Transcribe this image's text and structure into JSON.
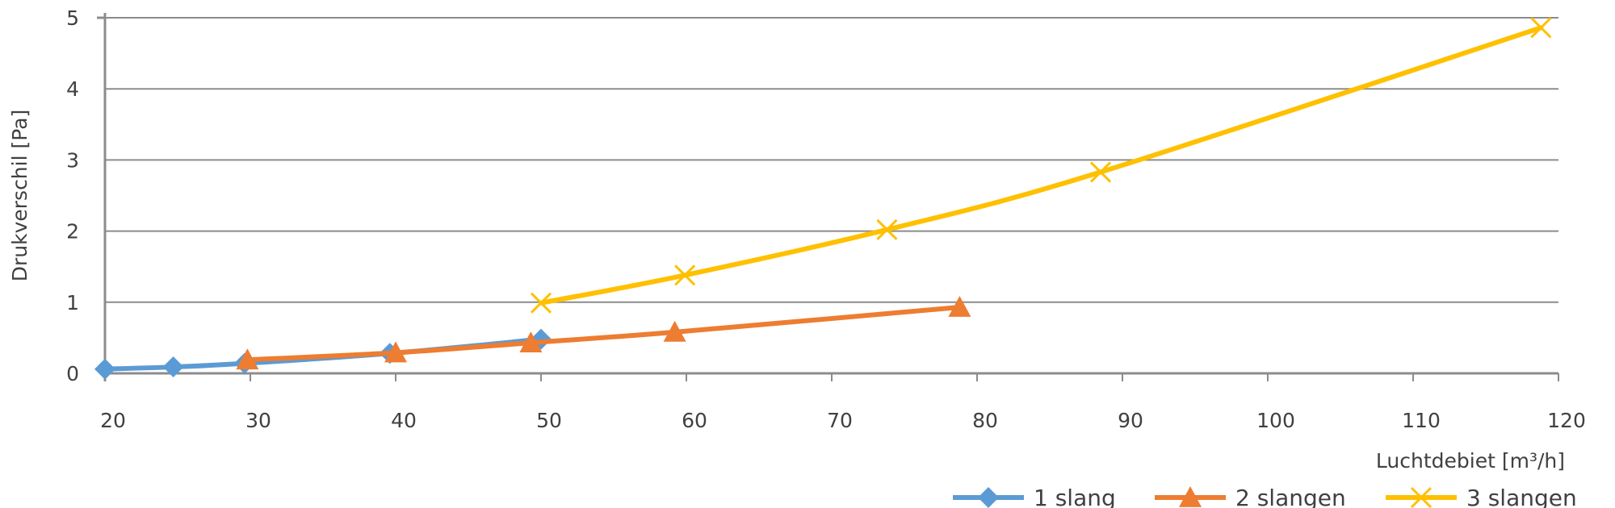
{
  "chart_data": {
    "type": "line",
    "xlabel": "Luchtdebiet [m³/h]",
    "ylabel": "Drukverschil [Pa]",
    "xlim": [
      20,
      120
    ],
    "ylim": [
      0,
      5
    ],
    "x_ticks": [
      "20",
      "30",
      "40",
      "50",
      "60",
      "70",
      "80",
      "90",
      "100",
      "110",
      "120"
    ],
    "y_ticks": [
      "0",
      "1",
      "2",
      "3",
      "4",
      "5"
    ],
    "grid": "horizontal",
    "legend_position": "bottom-right",
    "series": [
      {
        "name": "1 slang",
        "marker": "diamond",
        "color": "#5B9BD5",
        "points": [
          [
            20,
            0.06
          ],
          [
            24.7,
            0.09
          ],
          [
            29.6,
            0.14
          ],
          [
            39.6,
            0.28
          ],
          [
            50,
            0.48
          ]
        ]
      },
      {
        "name": "2 slangen",
        "marker": "triangle",
        "color": "#ED7D31",
        "points": [
          [
            29.8,
            0.19
          ],
          [
            40,
            0.29
          ],
          [
            49.3,
            0.43
          ],
          [
            59.2,
            0.58
          ],
          [
            78.8,
            0.93
          ]
        ]
      },
      {
        "name": "3 slangen",
        "marker": "x",
        "color": "#FFC000",
        "points": [
          [
            50,
            0.99
          ],
          [
            59.9,
            1.38
          ],
          [
            73.8,
            2.02
          ],
          [
            88.5,
            2.83
          ],
          [
            118.8,
            4.86
          ]
        ]
      }
    ]
  }
}
